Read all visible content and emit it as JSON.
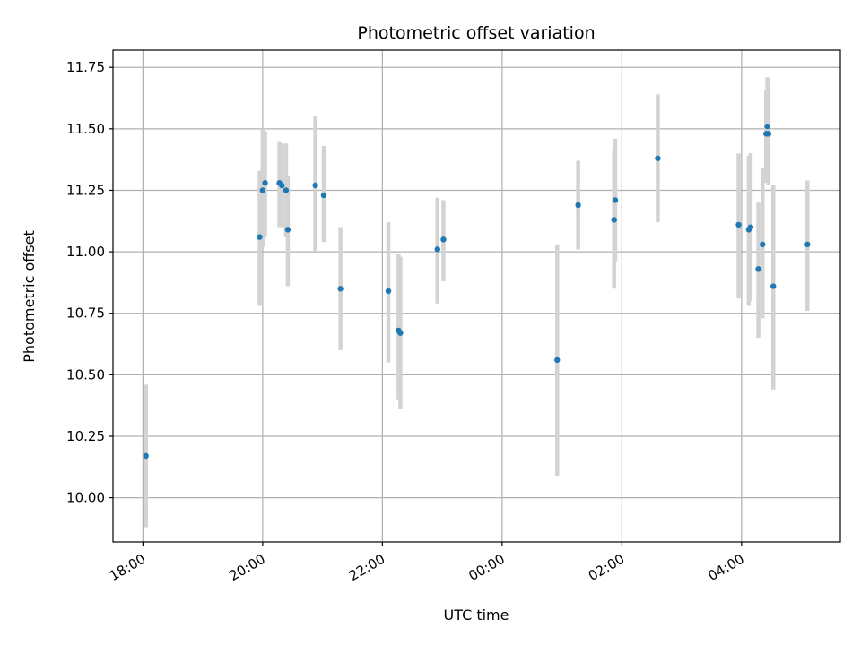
{
  "chart_data": {
    "type": "scatter",
    "title": "Photometric offset variation",
    "xlabel": "UTC time",
    "ylabel": "Photometric offset",
    "x_unit": "hours since 18:00",
    "xlim": [
      -0.5,
      11.65
    ],
    "ylim": [
      9.82,
      11.82
    ],
    "xticks": [
      {
        "value": 0,
        "label": "18:00"
      },
      {
        "value": 2,
        "label": "20:00"
      },
      {
        "value": 4,
        "label": "22:00"
      },
      {
        "value": 6,
        "label": "00:00"
      },
      {
        "value": 8,
        "label": "02:00"
      },
      {
        "value": 10,
        "label": "04:00"
      }
    ],
    "yticks": [
      {
        "value": 10.0,
        "label": "10.00"
      },
      {
        "value": 10.25,
        "label": "10.25"
      },
      {
        "value": 10.5,
        "label": "10.50"
      },
      {
        "value": 10.75,
        "label": "10.75"
      },
      {
        "value": 11.0,
        "label": "11.00"
      },
      {
        "value": 11.25,
        "label": "11.25"
      },
      {
        "value": 11.5,
        "label": "11.50"
      },
      {
        "value": 11.75,
        "label": "11.75"
      }
    ],
    "grid": true,
    "colors": {
      "point": "#1f77b4",
      "errorbar": "#d3d3d3",
      "grid": "#b0b0b0"
    },
    "series": [
      {
        "name": "offset",
        "points": [
          {
            "x": 0.05,
            "y": 10.17,
            "ylo": 9.88,
            "yhi": 10.46
          },
          {
            "x": 1.95,
            "y": 11.06,
            "ylo": 10.78,
            "yhi": 11.33
          },
          {
            "x": 2.0,
            "y": 11.25,
            "ylo": 11.02,
            "yhi": 11.5
          },
          {
            "x": 2.04,
            "y": 11.28,
            "ylo": 11.06,
            "yhi": 11.49
          },
          {
            "x": 2.28,
            "y": 11.28,
            "ylo": 11.1,
            "yhi": 11.45
          },
          {
            "x": 2.32,
            "y": 11.27,
            "ylo": 11.1,
            "yhi": 11.44
          },
          {
            "x": 2.39,
            "y": 11.25,
            "ylo": 11.06,
            "yhi": 11.44
          },
          {
            "x": 2.42,
            "y": 11.09,
            "ylo": 10.86,
            "yhi": 11.31
          },
          {
            "x": 2.88,
            "y": 11.27,
            "ylo": 11.0,
            "yhi": 11.55
          },
          {
            "x": 3.02,
            "y": 11.23,
            "ylo": 11.04,
            "yhi": 11.43
          },
          {
            "x": 3.3,
            "y": 10.85,
            "ylo": 10.6,
            "yhi": 11.1
          },
          {
            "x": 4.1,
            "y": 10.84,
            "ylo": 10.55,
            "yhi": 11.12
          },
          {
            "x": 4.27,
            "y": 10.68,
            "ylo": 10.4,
            "yhi": 10.99
          },
          {
            "x": 4.3,
            "y": 10.67,
            "ylo": 10.36,
            "yhi": 10.98
          },
          {
            "x": 4.92,
            "y": 11.01,
            "ylo": 10.79,
            "yhi": 11.22
          },
          {
            "x": 5.02,
            "y": 11.05,
            "ylo": 10.88,
            "yhi": 11.21
          },
          {
            "x": 6.92,
            "y": 10.56,
            "ylo": 10.09,
            "yhi": 11.03
          },
          {
            "x": 7.27,
            "y": 11.19,
            "ylo": 11.01,
            "yhi": 11.37
          },
          {
            "x": 7.87,
            "y": 11.13,
            "ylo": 10.85,
            "yhi": 11.41
          },
          {
            "x": 7.89,
            "y": 11.21,
            "ylo": 10.96,
            "yhi": 11.46
          },
          {
            "x": 8.6,
            "y": 11.38,
            "ylo": 11.12,
            "yhi": 11.64
          },
          {
            "x": 9.95,
            "y": 11.11,
            "ylo": 10.81,
            "yhi": 11.4
          },
          {
            "x": 10.12,
            "y": 11.09,
            "ylo": 10.78,
            "yhi": 11.39
          },
          {
            "x": 10.15,
            "y": 11.1,
            "ylo": 10.8,
            "yhi": 11.4
          },
          {
            "x": 10.28,
            "y": 10.93,
            "ylo": 10.65,
            "yhi": 11.2
          },
          {
            "x": 10.35,
            "y": 11.03,
            "ylo": 10.73,
            "yhi": 11.34
          },
          {
            "x": 10.41,
            "y": 11.48,
            "ylo": 11.28,
            "yhi": 11.66
          },
          {
            "x": 10.43,
            "y": 11.51,
            "ylo": 11.3,
            "yhi": 11.71
          },
          {
            "x": 10.45,
            "y": 11.48,
            "ylo": 11.27,
            "yhi": 11.69
          },
          {
            "x": 10.53,
            "y": 10.86,
            "ylo": 10.44,
            "yhi": 11.27
          },
          {
            "x": 11.1,
            "y": 11.03,
            "ylo": 10.76,
            "yhi": 11.29
          }
        ]
      }
    ]
  }
}
